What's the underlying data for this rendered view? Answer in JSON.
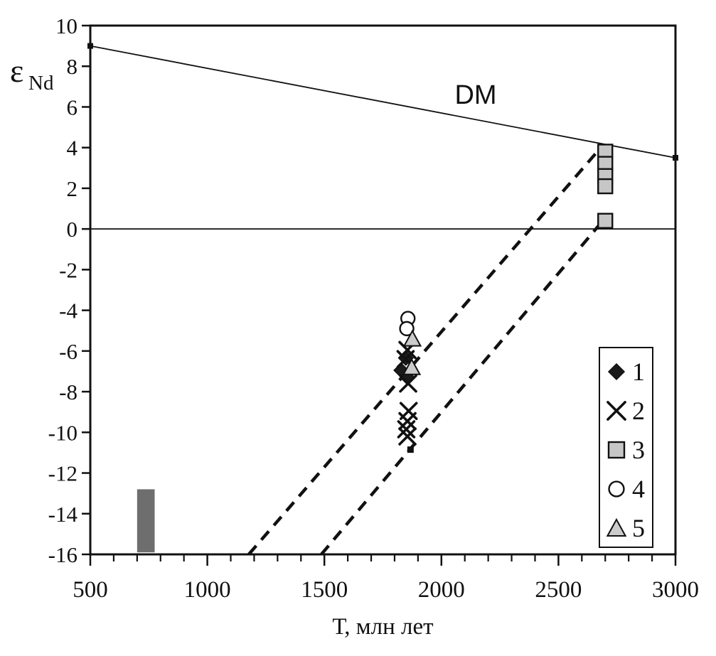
{
  "figure": {
    "background": "#ffffff",
    "ink_color": "#111111"
  },
  "chart_data": {
    "type": "scatter",
    "title": "",
    "xlabel": "Т, млн лет",
    "ylabel": "ε",
    "ylabel_sub": "Nd",
    "xlim": [
      500,
      3000
    ],
    "ylim": [
      -16,
      10
    ],
    "grid": false,
    "x_major_ticks": [
      500,
      1000,
      1500,
      2000,
      2500,
      3000
    ],
    "x_minor_step": 100,
    "y_ticks": [
      10,
      8,
      6,
      4,
      2,
      0,
      -2,
      -4,
      -6,
      -8,
      -10,
      -12,
      -14,
      -16
    ],
    "zero_line_y": 0,
    "dm_line": {
      "label": "DM",
      "points": [
        [
          500,
          9.0
        ],
        [
          3000,
          3.5
        ]
      ],
      "endpoint_marker": "small-square"
    },
    "dashed_lines": [
      {
        "name": "crust-evolution-line-upper",
        "points": [
          [
            1177,
            -16
          ],
          [
            2681,
            4.0
          ]
        ]
      },
      {
        "name": "crust-evolution-line-lower",
        "points": [
          [
            1487,
            -16
          ],
          [
            2693,
            0.45
          ]
        ]
      }
    ],
    "reference_bar": {
      "x_range": [
        700,
        775
      ],
      "y_range": [
        -15.9,
        -12.8
      ],
      "color": "#6e6e6e"
    },
    "series": [
      {
        "name": "1",
        "symbol": "diamond",
        "fill": "#1a1a1a",
        "stroke": "#111111",
        "points": [
          [
            1848,
            -6.35
          ],
          [
            1828,
            -6.95
          ],
          [
            1855,
            -7.3
          ]
        ]
      },
      {
        "name": "2",
        "symbol": "cross",
        "fill": "#111111",
        "stroke": "#111111",
        "points": [
          [
            1855,
            -5.95
          ],
          [
            1847,
            -6.4
          ],
          [
            1858,
            -7.6
          ],
          [
            1860,
            -8.95
          ],
          [
            1855,
            -9.45
          ],
          [
            1850,
            -9.85
          ],
          [
            1855,
            -10.2
          ]
        ]
      },
      {
        "name": "3",
        "symbol": "square",
        "fill": "#c6c6c6",
        "stroke": "#111111",
        "points": [
          [
            2700,
            3.8
          ],
          [
            2700,
            3.2
          ],
          [
            2700,
            2.6
          ],
          [
            2700,
            2.1
          ],
          [
            2700,
            0.4
          ]
        ]
      },
      {
        "name": "4",
        "symbol": "circle",
        "fill": "#ffffff",
        "stroke": "#111111",
        "points": [
          [
            1857,
            -4.4
          ],
          [
            1852,
            -4.9
          ]
        ]
      },
      {
        "name": "5",
        "symbol": "triangle",
        "fill": "#cbcbcb",
        "stroke": "#111111",
        "points": [
          [
            1876,
            -5.4
          ],
          [
            1873,
            -6.8
          ]
        ]
      }
    ],
    "extra_markers": [
      {
        "symbol": "small-square",
        "point": [
          1868,
          -10.85
        ],
        "fill": "#111111"
      }
    ],
    "legend": {
      "position": "bottom-right",
      "items": [
        {
          "symbol": "diamond",
          "label": "1"
        },
        {
          "symbol": "cross",
          "label": "2"
        },
        {
          "symbol": "square",
          "label": "3"
        },
        {
          "symbol": "circle",
          "label": "4"
        },
        {
          "symbol": "triangle",
          "label": "5"
        }
      ]
    }
  }
}
